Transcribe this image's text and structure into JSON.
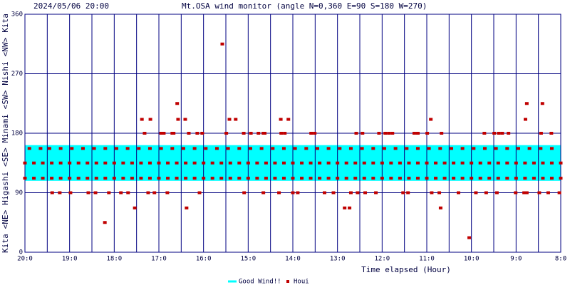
{
  "chart_data": {
    "type": "scatter",
    "stamp": "2024/05/06 20:00",
    "title": "Mt.OSA wind monitor (angle N=0,360 E=90 S=180 W=270)",
    "xlabel": "Time elapsed (Hour)",
    "ylabel": "Kita <NE> Higashi <SE> Minami <SW> Nishi <NW> Kita",
    "xlim": [
      0,
      12
    ],
    "xticks": [
      {
        "value": 0,
        "label": "20:0"
      },
      {
        "value": 1,
        "label": "19:0"
      },
      {
        "value": 2,
        "label": "18:0"
      },
      {
        "value": 3,
        "label": "17:0"
      },
      {
        "value": 4,
        "label": "16:0"
      },
      {
        "value": 5,
        "label": "15:0"
      },
      {
        "value": 6,
        "label": "14:0"
      },
      {
        "value": 7,
        "label": "13:0"
      },
      {
        "value": 8,
        "label": "12:0"
      },
      {
        "value": 9,
        "label": "11:0"
      },
      {
        "value": 10,
        "label": "10:0"
      },
      {
        "value": 11,
        "label": "9:0"
      },
      {
        "value": 12,
        "label": "8:0"
      }
    ],
    "ylim": [
      0,
      360
    ],
    "yticks": [
      0,
      90,
      180,
      270,
      360
    ],
    "grid": true,
    "band": {
      "name": "Good Wind!!",
      "color": "#00ffff",
      "range": [
        108,
        162
      ]
    },
    "series": [
      {
        "name": "Houi",
        "color": "#c00000",
        "x": [
          0,
          0.2,
          0.4,
          0.6,
          0.8,
          1,
          1.2,
          1.4,
          1.6,
          1.8,
          2,
          2.2,
          2.4,
          2.6,
          2.8,
          3,
          3.2,
          3.4,
          3.6,
          3.8,
          4,
          4.2,
          4.4,
          4.6,
          4.8,
          5,
          5.2,
          5.4,
          5.6,
          5.8,
          6,
          6.2,
          6.4,
          6.6,
          6.8,
          7,
          7.2,
          7.4,
          7.6,
          7.8,
          8,
          8.2,
          8.4,
          8.6,
          8.8,
          9,
          9.2,
          9.4,
          9.6,
          9.8,
          10,
          10.2,
          10.4,
          10.6,
          10.8,
          11,
          11.2,
          11.4,
          11.6,
          11.8,
          12,
          0,
          0.2,
          0.4,
          0.6,
          0.8,
          1,
          1.2,
          1.4,
          1.6,
          1.8,
          2,
          2.2,
          2.4,
          2.6,
          2.8,
          3,
          3.2,
          3.4,
          3.6,
          3.8,
          4,
          4.2,
          4.4,
          4.6,
          4.8,
          5,
          5.2,
          5.4,
          5.6,
          5.8,
          6,
          6.2,
          6.4,
          6.6,
          6.8,
          7,
          7.2,
          7.4,
          7.6,
          7.8,
          8,
          8.2,
          8.4,
          8.6,
          8.8,
          9,
          9.2,
          9.4,
          9.6,
          9.8,
          10,
          10.2,
          10.4,
          10.6,
          10.8,
          11,
          11.2,
          11.4,
          11.6,
          11.8,
          12,
          0.1,
          0.35,
          0.55,
          0.8,
          1.05,
          1.3,
          1.55,
          1.8,
          2.05,
          2.3,
          2.55,
          2.8,
          3.05,
          3.3,
          3.55,
          3.8,
          4.05,
          4.3,
          4.55,
          4.8,
          5.05,
          5.3,
          5.55,
          5.8,
          6.05,
          6.3,
          6.55,
          6.8,
          7.05,
          7.3,
          7.55,
          7.8,
          8.05,
          8.3,
          8.55,
          8.8,
          9.05,
          9.3,
          9.55,
          9.8,
          10.05,
          10.3,
          10.55,
          10.8,
          11.05,
          11.3,
          11.55,
          11.8,
          0.61,
          0.78,
          1.02,
          1.42,
          1.58,
          1.88,
          2.15,
          2.31,
          2.76,
          2.9,
          3.19,
          3.91,
          4.91,
          5.34,
          5.69,
          6.0,
          6.11,
          6.71,
          6.91,
          7.3,
          7.45,
          7.62,
          7.86,
          8.47,
          8.58,
          9.11,
          9.28,
          9.71,
          10.1,
          10.33,
          10.57,
          10.99,
          11.18,
          11.24,
          11.52,
          11.72,
          11.97,
          2.68,
          3.05,
          3.11,
          3.3,
          3.33,
          3.67,
          3.86,
          3.97,
          4.51,
          4.9,
          5.06,
          5.23,
          5.34,
          5.37,
          5.74,
          5.82,
          6.41,
          6.49,
          7.42,
          7.56,
          7.93,
          8.07,
          8.15,
          8.23,
          8.72,
          8.8,
          9.01,
          9.33,
          10.29,
          10.51,
          10.61,
          10.69,
          10.83,
          11.56,
          11.79,
          2.62,
          2.81,
          3.43,
          3.59,
          4.58,
          4.72,
          5.73,
          5.9,
          9.09,
          11.21,
          3.41,
          11.24,
          11.59,
          4.42,
          2.46,
          3.62,
          7.16,
          7.27,
          9.31,
          1.79,
          9.95
        ],
        "values": [
          135,
          135,
          135,
          135,
          135,
          135,
          135,
          135,
          135,
          135,
          135,
          135,
          135,
          135,
          135,
          135,
          135,
          135,
          135,
          135,
          135,
          135,
          135,
          135,
          135,
          135,
          135,
          135,
          135,
          135,
          135,
          135,
          135,
          135,
          135,
          135,
          135,
          135,
          135,
          135,
          135,
          135,
          135,
          135,
          135,
          135,
          135,
          135,
          135,
          135,
          135,
          135,
          135,
          135,
          135,
          135,
          135,
          135,
          135,
          135,
          135,
          112,
          112,
          112,
          112,
          112,
          112,
          112,
          112,
          112,
          112,
          112,
          112,
          112,
          112,
          112,
          112,
          112,
          112,
          112,
          112,
          112,
          112,
          112,
          112,
          112,
          112,
          112,
          112,
          112,
          112,
          112,
          112,
          112,
          112,
          112,
          112,
          112,
          112,
          112,
          112,
          112,
          112,
          112,
          112,
          112,
          112,
          112,
          112,
          112,
          112,
          112,
          112,
          112,
          112,
          112,
          112,
          112,
          112,
          112,
          112,
          112,
          157,
          157,
          157,
          157,
          157,
          157,
          157,
          157,
          157,
          157,
          157,
          157,
          157,
          157,
          157,
          157,
          157,
          157,
          157,
          157,
          157,
          157,
          157,
          157,
          157,
          157,
          157,
          157,
          157,
          157,
          157,
          157,
          157,
          157,
          157,
          157,
          157,
          157,
          157,
          157,
          157,
          157,
          157,
          157,
          157,
          157,
          157,
          157,
          90,
          90,
          90,
          90,
          90,
          90,
          90,
          90,
          90,
          90,
          90,
          90,
          90,
          90,
          90,
          90,
          90,
          90,
          90,
          90,
          90,
          90,
          90,
          90,
          90,
          90,
          90,
          90,
          90,
          90,
          90,
          90,
          90,
          90,
          90,
          90,
          90,
          180,
          180,
          180,
          180,
          180,
          180,
          180,
          180,
          180,
          180,
          180,
          180,
          180,
          180,
          180,
          180,
          180,
          180,
          180,
          180,
          180,
          180,
          180,
          180,
          180,
          180,
          180,
          180,
          180,
          180,
          180,
          180,
          180,
          180,
          180,
          201,
          201,
          201,
          201,
          201,
          201,
          201,
          201,
          201,
          201,
          225,
          225,
          225,
          315,
          67,
          67,
          67,
          67,
          67,
          45,
          22
        ]
      }
    ],
    "legend": "bottom"
  }
}
